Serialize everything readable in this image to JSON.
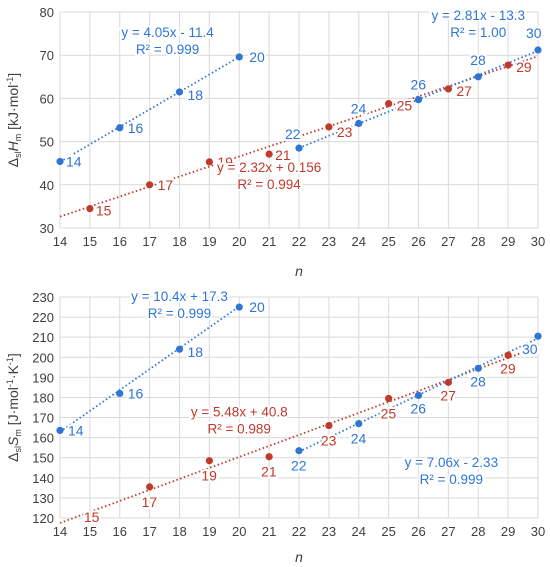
{
  "chart_data": [
    {
      "type": "scatter",
      "ylabel_parts": {
        "pre": "Δ",
        "sub1": "sl",
        "mid": "H",
        "sub2": "m",
        "unit": " [kJ·mol",
        "sup": "-1",
        "end": "]"
      },
      "xlabel": "n",
      "xlim": [
        14,
        30
      ],
      "ylim": [
        30,
        80
      ],
      "x_ticks": [
        14,
        15,
        16,
        17,
        18,
        19,
        20,
        21,
        22,
        23,
        24,
        25,
        26,
        27,
        28,
        29,
        30
      ],
      "y_ticks": [
        30,
        40,
        50,
        60,
        70,
        80
      ],
      "grid": true,
      "colors": {
        "even": "#2e75d6",
        "odd": "#c0392b"
      },
      "series": [
        {
          "group": "even",
          "x": [
            14,
            16,
            18,
            20
          ],
          "y": [
            45.4,
            53.2,
            61.5,
            69.6
          ],
          "fit": {
            "slope": 4.05,
            "intercept": -11.4,
            "x0": 14,
            "x1": 20
          },
          "equation": "y = 4.05x - 11.4",
          "r2": "R² = 0.999"
        },
        {
          "group": "odd",
          "x": [
            15,
            17,
            19,
            21,
            23,
            25,
            27,
            29
          ],
          "y": [
            34.5,
            40.0,
            45.3,
            47.1,
            53.4,
            58.8,
            62.2,
            67.7
          ],
          "fit": {
            "slope": 2.32,
            "intercept": 0.156,
            "x0": 14,
            "x1": 30
          },
          "equation": "y = 2.32x + 0.156",
          "r2": "R² = 0.994"
        },
        {
          "group": "even",
          "x": [
            22,
            24,
            26,
            28,
            30
          ],
          "y": [
            48.5,
            54.2,
            59.7,
            65.0,
            71.2
          ],
          "fit": {
            "slope": 2.81,
            "intercept": -13.3,
            "x0": 22,
            "x1": 30
          },
          "equation": "y = 2.81x - 13.3",
          "r2": "R² = 1.00"
        }
      ],
      "point_labels": [
        {
          "text": "14",
          "x": 14,
          "y": 45.4,
          "group": "even",
          "dx": 6,
          "dy": 5
        },
        {
          "text": "16",
          "x": 16,
          "y": 53.2,
          "group": "even",
          "dx": 8,
          "dy": 5
        },
        {
          "text": "18",
          "x": 18,
          "y": 61.5,
          "group": "even",
          "dx": 8,
          "dy": 8
        },
        {
          "text": "20",
          "x": 20,
          "y": 69.6,
          "group": "even",
          "dx": 10,
          "dy": 5
        },
        {
          "text": "22",
          "x": 22,
          "y": 48.5,
          "group": "even",
          "dx": -14,
          "dy": -9
        },
        {
          "text": "24",
          "x": 24,
          "y": 54.2,
          "group": "even",
          "dx": -8,
          "dy": -10
        },
        {
          "text": "26",
          "x": 26,
          "y": 59.7,
          "group": "even",
          "dx": -8,
          "dy": -10
        },
        {
          "text": "28",
          "x": 28,
          "y": 65.0,
          "group": "even",
          "dx": -8,
          "dy": -12
        },
        {
          "text": "30",
          "x": 30,
          "y": 71.2,
          "group": "even",
          "dx": -12,
          "dy": -12
        },
        {
          "text": "15",
          "x": 15,
          "y": 34.5,
          "group": "odd",
          "dx": 6,
          "dy": 7
        },
        {
          "text": "17",
          "x": 17,
          "y": 40.0,
          "group": "odd",
          "dx": 8,
          "dy": 5
        },
        {
          "text": "19",
          "x": 19,
          "y": 45.3,
          "group": "odd",
          "dx": 8,
          "dy": 5
        },
        {
          "text": "21",
          "x": 21,
          "y": 47.1,
          "group": "odd",
          "dx": 6,
          "dy": 6
        },
        {
          "text": "23",
          "x": 23,
          "y": 53.4,
          "group": "odd",
          "dx": 8,
          "dy": 10
        },
        {
          "text": "25",
          "x": 25,
          "y": 58.8,
          "group": "odd",
          "dx": 8,
          "dy": 7
        },
        {
          "text": "27",
          "x": 27,
          "y": 62.2,
          "group": "odd",
          "dx": 8,
          "dy": 7
        },
        {
          "text": "29",
          "x": 29,
          "y": 67.7,
          "group": "odd",
          "dx": 8,
          "dy": 7
        }
      ],
      "equations": [
        {
          "lines": [
            "y = 4.05x - 11.4",
            "R² = 0.999"
          ],
          "x": 17.6,
          "y": 74.2,
          "group": "even"
        },
        {
          "lines": [
            "y = 2.32x + 0.156",
            "R² = 0.994"
          ],
          "x": 21.0,
          "y": 43.0,
          "group": "odd"
        },
        {
          "lines": [
            "y = 2.81x - 13.3",
            "R² = 1.00"
          ],
          "x": 28.0,
          "y": 78.2,
          "group": "even"
        }
      ]
    },
    {
      "type": "scatter",
      "ylabel_parts": {
        "pre": "Δ",
        "sub1": "sl",
        "mid": "S",
        "sub2": "m",
        "unit": " [J·mol",
        "sup": "-1",
        "mid2": "·K",
        "sup2": "-1",
        "end": "]"
      },
      "xlabel": "n",
      "xlim": [
        14,
        30
      ],
      "ylim": [
        120,
        230
      ],
      "x_ticks": [
        14,
        15,
        16,
        17,
        18,
        19,
        20,
        21,
        22,
        23,
        24,
        25,
        26,
        27,
        28,
        29,
        30
      ],
      "y_ticks": [
        120,
        130,
        140,
        150,
        160,
        170,
        180,
        190,
        200,
        210,
        220,
        230
      ],
      "grid": true,
      "colors": {
        "even": "#2e75d6",
        "odd": "#c0392b"
      },
      "series": [
        {
          "group": "even",
          "x": [
            14,
            16,
            18,
            20
          ],
          "y": [
            163.6,
            182.0,
            204.0,
            225.0
          ],
          "fit": {
            "slope": 10.4,
            "intercept": 17.3,
            "x0": 14,
            "x1": 20
          },
          "equation": "y = 10.4x + 17.3",
          "r2": "R² = 0.999"
        },
        {
          "group": "odd",
          "x": [
            15,
            17,
            19,
            21,
            23,
            25,
            27,
            29
          ],
          "y": [
            122.0,
            135.5,
            148.5,
            150.5,
            166.0,
            179.5,
            187.5,
            201.0
          ],
          "fit": {
            "slope": 5.48,
            "intercept": 40.8,
            "x0": 14,
            "x1": 30
          },
          "equation": "y = 5.48x + 40.8",
          "r2": "R² = 0.989"
        },
        {
          "group": "even",
          "x": [
            22,
            24,
            26,
            28,
            30
          ],
          "y": [
            153.5,
            167.0,
            181.0,
            194.5,
            210.5
          ],
          "fit": {
            "slope": 7.06,
            "intercept": -2.33,
            "x0": 22,
            "x1": 30
          },
          "equation": "y = 7.06x - 2.33",
          "r2": "R² = 0.999"
        }
      ],
      "point_labels": [
        {
          "text": "14",
          "x": 14,
          "y": 163.6,
          "group": "even",
          "dx": 8,
          "dy": 5
        },
        {
          "text": "16",
          "x": 16,
          "y": 182.0,
          "group": "even",
          "dx": 8,
          "dy": 5
        },
        {
          "text": "18",
          "x": 18,
          "y": 204.0,
          "group": "even",
          "dx": 8,
          "dy": 8
        },
        {
          "text": "20",
          "x": 20,
          "y": 225.0,
          "group": "even",
          "dx": 10,
          "dy": 5
        },
        {
          "text": "22",
          "x": 22,
          "y": 153.5,
          "group": "even",
          "dx": -8,
          "dy": 20
        },
        {
          "text": "24",
          "x": 24,
          "y": 167.0,
          "group": "even",
          "dx": -8,
          "dy": 20
        },
        {
          "text": "26",
          "x": 26,
          "y": 181.0,
          "group": "even",
          "dx": -8,
          "dy": 18
        },
        {
          "text": "28",
          "x": 28,
          "y": 194.5,
          "group": "even",
          "dx": -8,
          "dy": 18
        },
        {
          "text": "30",
          "x": 30,
          "y": 210.5,
          "group": "even",
          "dx": -16,
          "dy": 18
        },
        {
          "text": "15",
          "x": 15,
          "y": 122.0,
          "group": "odd",
          "dx": -6,
          "dy": 8
        },
        {
          "text": "17",
          "x": 17,
          "y": 135.5,
          "group": "odd",
          "dx": -8,
          "dy": 20
        },
        {
          "text": "19",
          "x": 19,
          "y": 148.5,
          "group": "odd",
          "dx": -8,
          "dy": 20
        },
        {
          "text": "21",
          "x": 21,
          "y": 150.5,
          "group": "odd",
          "dx": -8,
          "dy": 20
        },
        {
          "text": "23",
          "x": 23,
          "y": 166.0,
          "group": "odd",
          "dx": -8,
          "dy": 20
        },
        {
          "text": "25",
          "x": 25,
          "y": 179.5,
          "group": "odd",
          "dx": -8,
          "dy": 20
        },
        {
          "text": "27",
          "x": 27,
          "y": 187.5,
          "group": "odd",
          "dx": -8,
          "dy": 18
        },
        {
          "text": "29",
          "x": 29,
          "y": 201.0,
          "group": "odd",
          "dx": -8,
          "dy": 18
        }
      ],
      "equations": [
        {
          "lines": [
            "y = 10.4x + 17.3",
            "R² = 0.999"
          ],
          "x": 18.0,
          "y": 228.0,
          "group": "even"
        },
        {
          "lines": [
            "y = 5.48x + 40.8",
            "R² = 0.989"
          ],
          "x": 20.0,
          "y": 170.5,
          "group": "odd"
        },
        {
          "lines": [
            "y = 7.06x - 2.33",
            "R² = 0.999"
          ],
          "x": 27.1,
          "y": 145.5,
          "group": "even"
        }
      ]
    }
  ]
}
